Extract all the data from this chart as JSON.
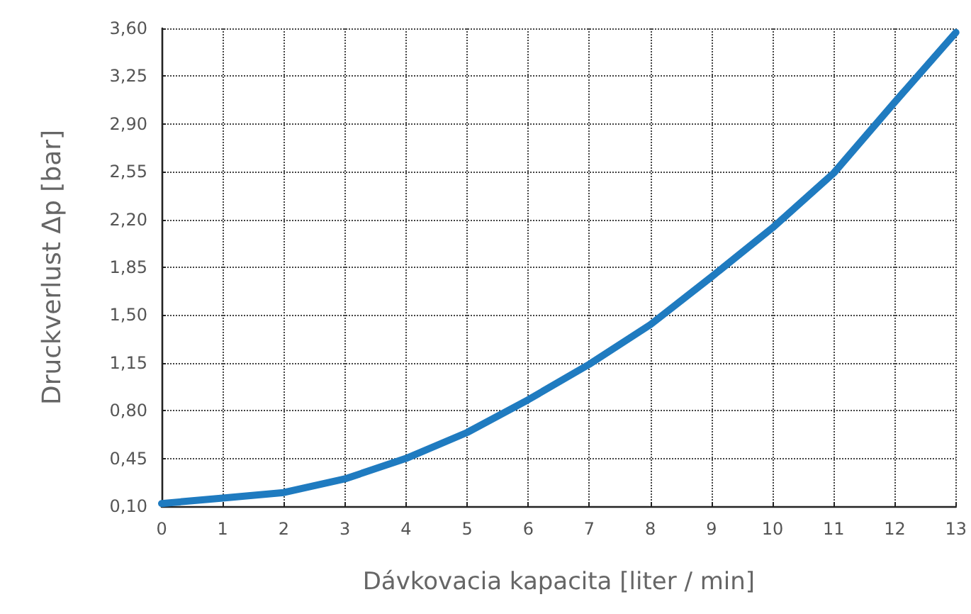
{
  "chart_data": {
    "type": "line",
    "xlabel": "Dávkovacia kapacita [liter / min]",
    "ylabel": "Druckverlust Δp [bar]",
    "x": [
      0,
      1,
      2,
      3,
      4,
      5,
      6,
      7,
      8,
      9,
      10,
      11,
      12,
      13
    ],
    "series": [
      {
        "color": "#1f7bc0",
        "values": [
          0.12,
          0.16,
          0.2,
          0.3,
          0.45,
          0.64,
          0.88,
          1.14,
          1.43,
          1.78,
          2.14,
          2.54,
          3.06,
          3.57
        ]
      }
    ],
    "xlim": [
      0,
      13
    ],
    "xticks": [
      0,
      1,
      2,
      3,
      4,
      5,
      6,
      7,
      8,
      9,
      10,
      11,
      12,
      13
    ],
    "ylim": [
      0.1,
      3.6
    ],
    "yticks": [
      {
        "value": 0.1,
        "label": "0,10"
      },
      {
        "value": 0.45,
        "label": "0,45"
      },
      {
        "value": 0.8,
        "label": "0,80"
      },
      {
        "value": 1.15,
        "label": "1,15"
      },
      {
        "value": 1.5,
        "label": "1,50"
      },
      {
        "value": 1.85,
        "label": "1,85"
      },
      {
        "value": 2.2,
        "label": "2,20"
      },
      {
        "value": 2.55,
        "label": "2,55"
      },
      {
        "value": 2.9,
        "label": "2,90"
      },
      {
        "value": 3.25,
        "label": "3,25"
      },
      {
        "value": 3.6,
        "label": "3,60"
      }
    ],
    "grid": true,
    "marker": "none",
    "line_style": "solid"
  }
}
